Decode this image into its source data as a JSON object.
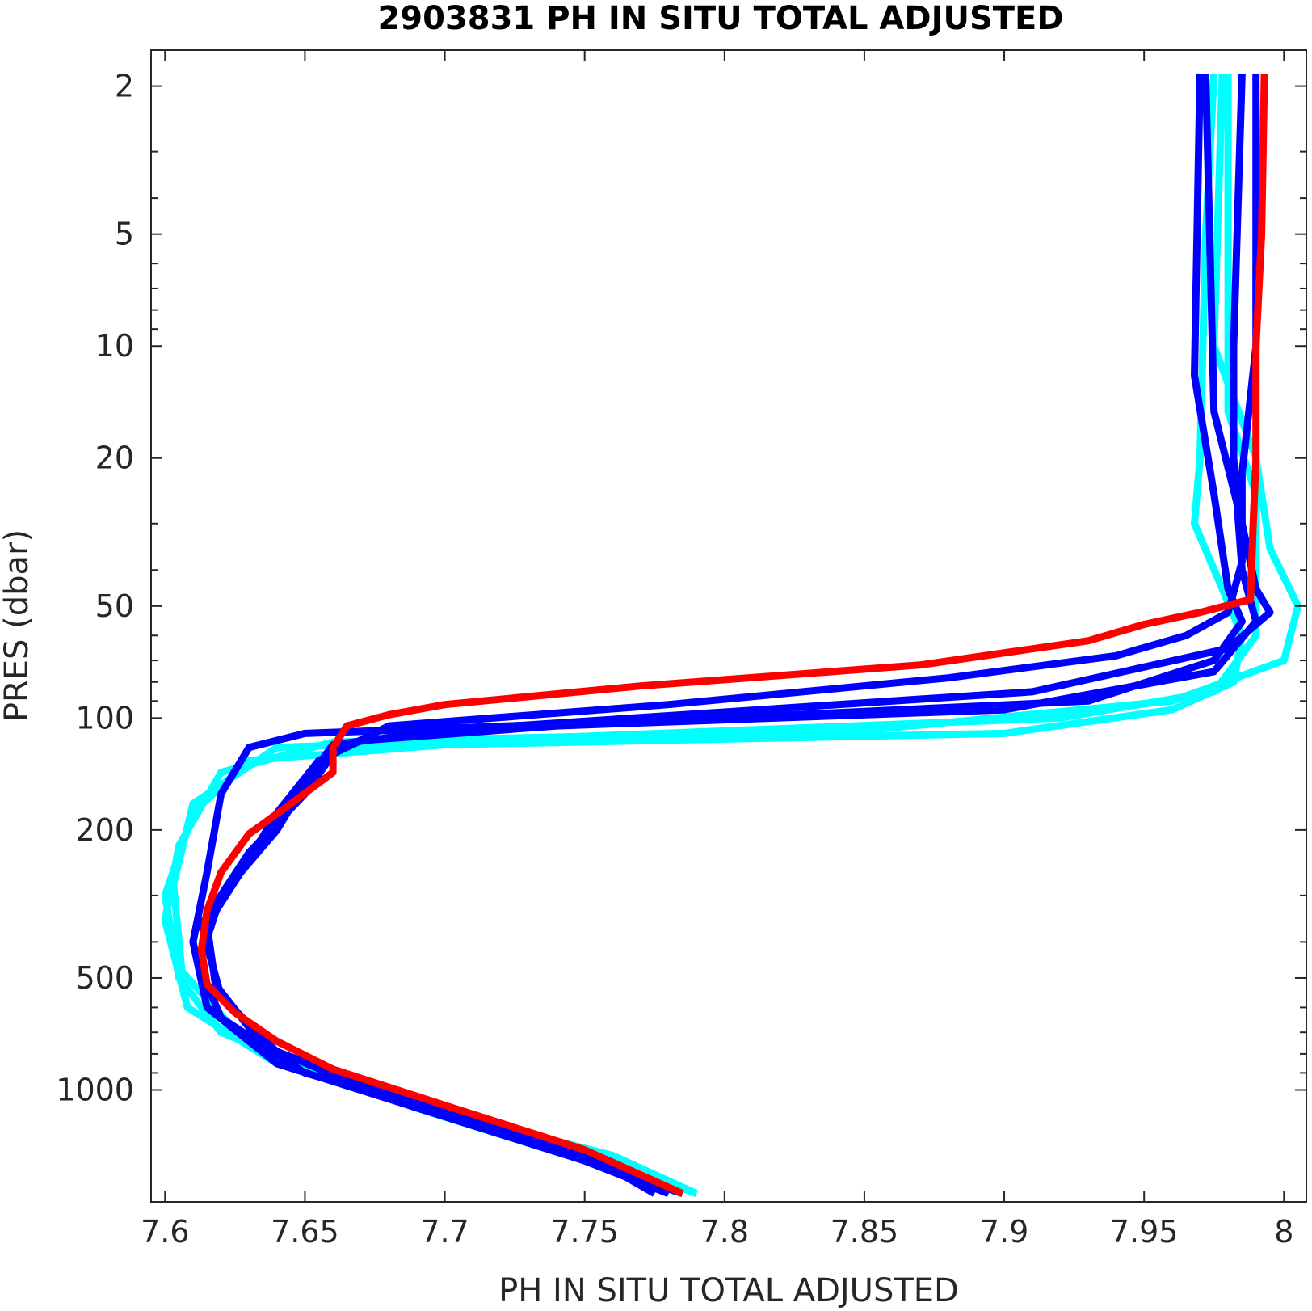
{
  "chart_data": {
    "type": "line",
    "title": "2903831  PH IN SITU TOTAL ADJUSTED",
    "xlabel": "PH IN SITU TOTAL ADJUSTED",
    "ylabel": "PRES (dbar)",
    "xlim": [
      7.595,
      8.008
    ],
    "ylim": [
      1.6,
      2000
    ],
    "yscale": "log",
    "yreversed": true,
    "grid": false,
    "x_ticks": [
      7.6,
      7.65,
      7.7,
      7.75,
      7.8,
      7.85,
      7.9,
      7.95,
      8
    ],
    "x_tick_labels": [
      "7.6",
      "7.65",
      "7.7",
      "7.75",
      "7.8",
      "7.85",
      "7.9",
      "7.95",
      "8"
    ],
    "y_ticks": [
      2,
      5,
      10,
      20,
      50,
      100,
      200,
      500,
      1000
    ],
    "y_tick_labels": [
      "2",
      "5",
      "10",
      "20",
      "50",
      "100",
      "200",
      "500",
      "1000"
    ],
    "y_minor_ticks": [
      3,
      4,
      6,
      7,
      8,
      9,
      30,
      40,
      60,
      70,
      80,
      90,
      300,
      400,
      600,
      700,
      800,
      900
    ],
    "colors": {
      "cyan": "#00ffff",
      "blue": "#0000ff",
      "red": "#ff0000"
    },
    "series": [
      {
        "color": "#00ffff",
        "points": [
          [
            7.975,
            1.85
          ],
          [
            7.972,
            5
          ],
          [
            7.97,
            20
          ],
          [
            7.968,
            30
          ],
          [
            7.978,
            45
          ],
          [
            7.985,
            60
          ],
          [
            7.982,
            80
          ],
          [
            7.96,
            95
          ],
          [
            7.9,
            110
          ],
          [
            7.7,
            118
          ],
          [
            7.63,
            130
          ],
          [
            7.61,
            180
          ],
          [
            7.6,
            300
          ],
          [
            7.605,
            500
          ],
          [
            7.62,
            700
          ],
          [
            7.67,
            1000
          ],
          [
            7.74,
            1400
          ],
          [
            7.79,
            1900
          ]
        ]
      },
      {
        "color": "#00ffff",
        "points": [
          [
            7.978,
            1.85
          ],
          [
            7.975,
            10
          ],
          [
            7.99,
            20
          ],
          [
            7.995,
            35
          ],
          [
            8.005,
            50
          ],
          [
            8.0,
            70
          ],
          [
            7.96,
            90
          ],
          [
            7.85,
            108
          ],
          [
            7.66,
            116
          ],
          [
            7.62,
            140
          ],
          [
            7.605,
            220
          ],
          [
            7.6,
            350
          ],
          [
            7.608,
            600
          ],
          [
            7.64,
            850
          ],
          [
            7.7,
            1150
          ],
          [
            7.76,
            1500
          ],
          [
            7.79,
            1900
          ]
        ]
      },
      {
        "color": "#00ffff",
        "points": [
          [
            7.98,
            1.85
          ],
          [
            7.98,
            15
          ],
          [
            7.99,
            25
          ],
          [
            7.99,
            40
          ],
          [
            7.99,
            60
          ],
          [
            7.975,
            85
          ],
          [
            7.92,
            100
          ],
          [
            7.75,
            112
          ],
          [
            7.64,
            120
          ],
          [
            7.61,
            170
          ],
          [
            7.603,
            280
          ],
          [
            7.606,
            480
          ],
          [
            7.63,
            760
          ],
          [
            7.69,
            1120
          ],
          [
            7.75,
            1550
          ],
          [
            7.785,
            1900
          ]
        ]
      },
      {
        "color": "#0000ff",
        "points": [
          [
            7.97,
            1.85
          ],
          [
            7.968,
            12
          ],
          [
            7.975,
            25
          ],
          [
            7.98,
            45
          ],
          [
            7.985,
            55
          ],
          [
            7.975,
            70
          ],
          [
            7.93,
            90
          ],
          [
            7.8,
            100
          ],
          [
            7.65,
            110
          ],
          [
            7.63,
            120
          ],
          [
            7.62,
            160
          ],
          [
            7.615,
            260
          ],
          [
            7.61,
            400
          ],
          [
            7.615,
            600
          ],
          [
            7.64,
            850
          ],
          [
            7.7,
            1180
          ],
          [
            7.75,
            1550
          ],
          [
            7.78,
            1900
          ]
        ]
      },
      {
        "color": "#0000ff",
        "points": [
          [
            7.972,
            1.85
          ],
          [
            7.975,
            15
          ],
          [
            7.985,
            30
          ],
          [
            7.99,
            45
          ],
          [
            7.995,
            52
          ],
          [
            7.98,
            65
          ],
          [
            7.91,
            85
          ],
          [
            7.7,
            108
          ],
          [
            7.66,
            118
          ],
          [
            7.65,
            150
          ],
          [
            7.64,
            200
          ],
          [
            7.62,
            300
          ],
          [
            7.612,
            460
          ],
          [
            7.62,
            640
          ],
          [
            7.65,
            900
          ],
          [
            7.71,
            1200
          ],
          [
            7.755,
            1600
          ],
          [
            7.785,
            1900
          ]
        ]
      },
      {
        "color": "#0000ff",
        "points": [
          [
            7.985,
            1.85
          ],
          [
            7.982,
            10
          ],
          [
            7.982,
            20
          ],
          [
            7.985,
            40
          ],
          [
            7.99,
            55
          ],
          [
            7.975,
            75
          ],
          [
            7.9,
            95
          ],
          [
            7.74,
            105
          ],
          [
            7.67,
            115
          ],
          [
            7.655,
            130
          ],
          [
            7.64,
            180
          ],
          [
            7.63,
            240
          ],
          [
            7.615,
            360
          ],
          [
            7.618,
            520
          ],
          [
            7.635,
            760
          ],
          [
            7.68,
            1050
          ],
          [
            7.74,
            1450
          ],
          [
            7.78,
            1900
          ]
        ]
      },
      {
        "color": "#0000ff",
        "points": [
          [
            7.99,
            1.85
          ],
          [
            7.99,
            10
          ],
          [
            7.985,
            22
          ],
          [
            7.985,
            38
          ],
          [
            7.98,
            52
          ],
          [
            7.965,
            60
          ],
          [
            7.94,
            68
          ],
          [
            7.88,
            78
          ],
          [
            7.78,
            92
          ],
          [
            7.68,
            105
          ],
          [
            7.66,
            125
          ],
          [
            7.65,
            160
          ],
          [
            7.63,
            230
          ],
          [
            7.613,
            360
          ],
          [
            7.62,
            560
          ],
          [
            7.64,
            790
          ],
          [
            7.69,
            1080
          ],
          [
            7.75,
            1480
          ],
          [
            7.775,
            1900
          ]
        ]
      },
      {
        "color": "#ff0000",
        "points": [
          [
            7.993,
            1.85
          ],
          [
            7.992,
            5
          ],
          [
            7.99,
            10
          ],
          [
            7.99,
            20
          ],
          [
            7.989,
            30
          ],
          [
            7.988,
            48
          ],
          [
            7.97,
            52
          ],
          [
            7.95,
            56
          ],
          [
            7.93,
            62
          ],
          [
            7.87,
            72
          ],
          [
            7.77,
            82
          ],
          [
            7.7,
            92
          ],
          [
            7.68,
            98
          ],
          [
            7.665,
            105
          ],
          [
            7.66,
            120
          ],
          [
            7.66,
            140
          ],
          [
            7.645,
            170
          ],
          [
            7.63,
            205
          ],
          [
            7.62,
            260
          ],
          [
            7.615,
            330
          ],
          [
            7.613,
            420
          ],
          [
            7.615,
            520
          ],
          [
            7.625,
            620
          ],
          [
            7.64,
            740
          ],
          [
            7.66,
            880
          ],
          [
            7.7,
            1100
          ],
          [
            7.75,
            1450
          ],
          [
            7.785,
            1900
          ]
        ]
      }
    ]
  }
}
